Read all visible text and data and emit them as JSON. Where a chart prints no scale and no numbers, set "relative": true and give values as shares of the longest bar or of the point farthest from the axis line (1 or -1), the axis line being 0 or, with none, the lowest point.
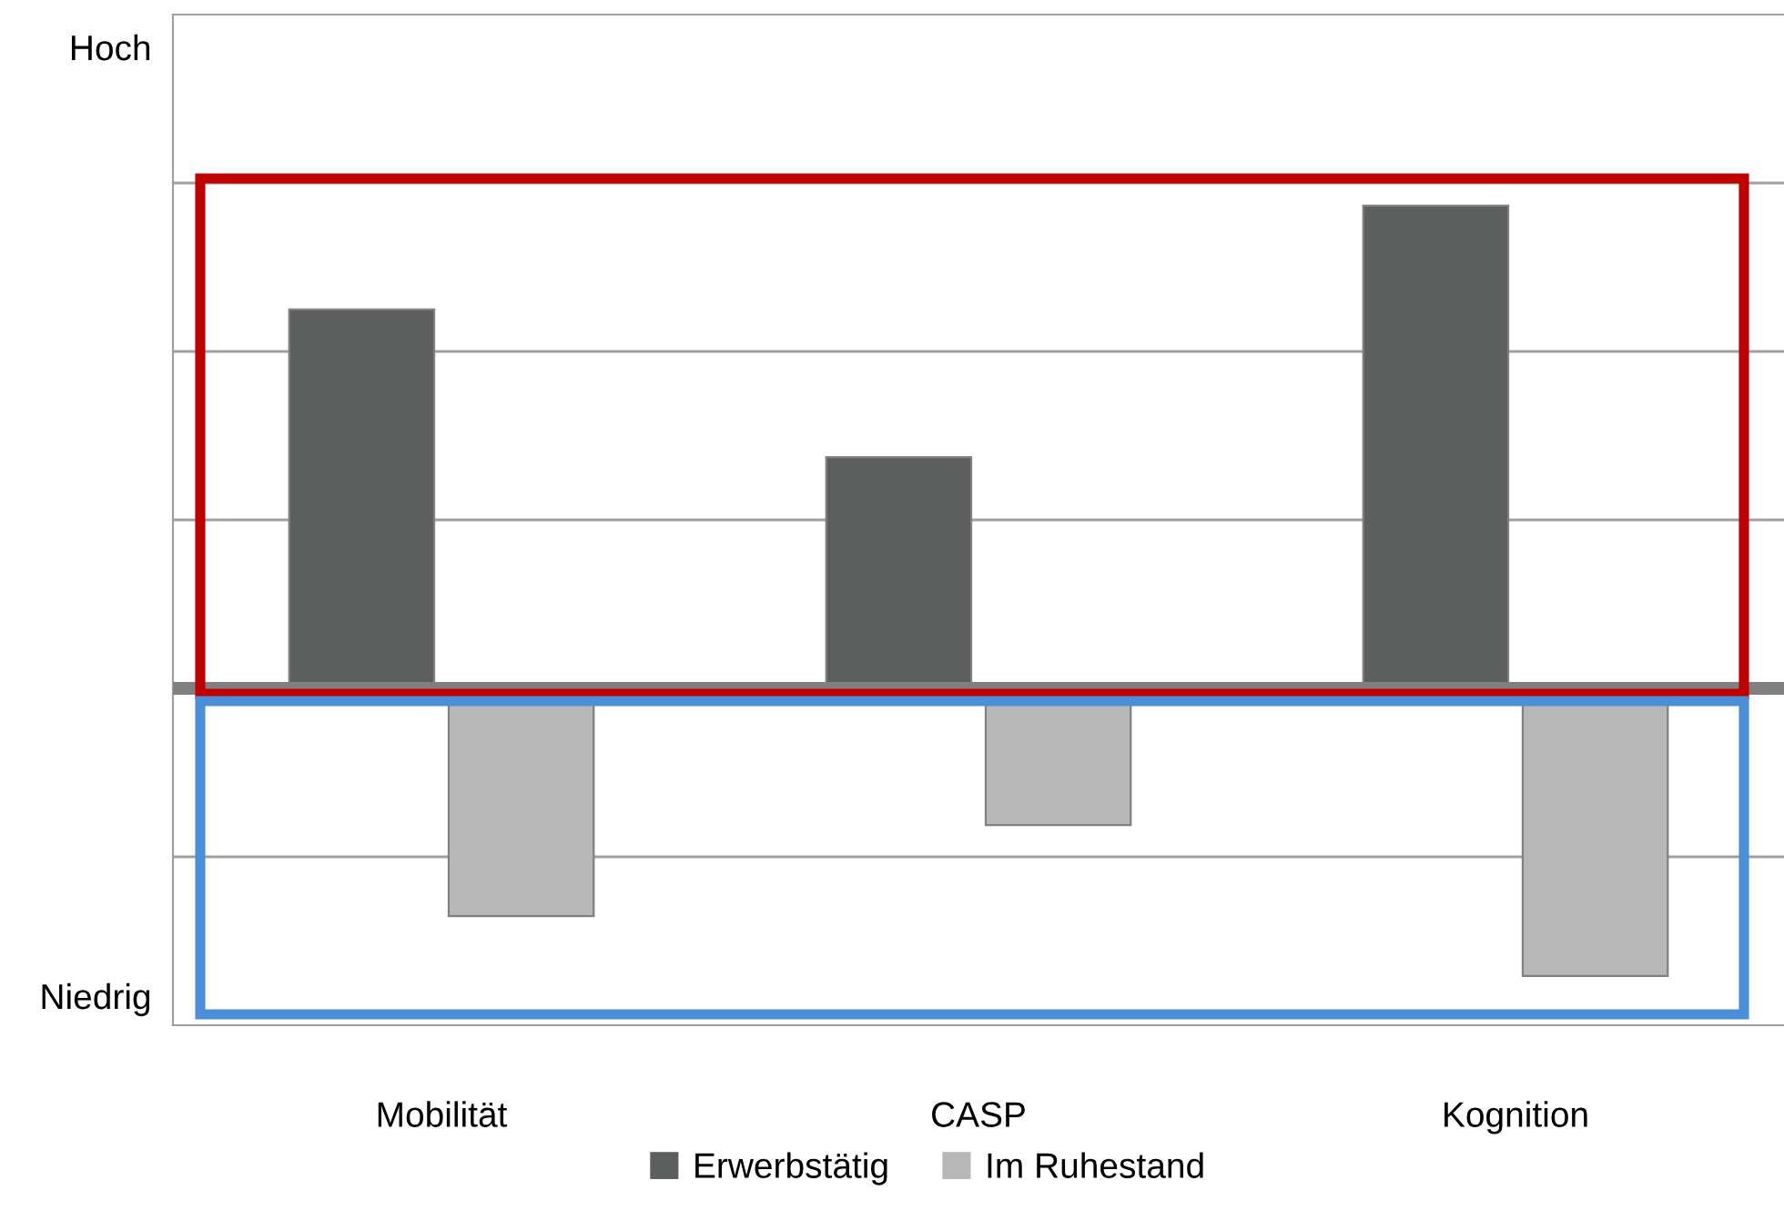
{
  "chart_data": {
    "type": "bar",
    "relative": true,
    "categories": [
      "Mobilität",
      "CASP",
      "Kognition"
    ],
    "series": [
      {
        "name": "Erwerbstätig",
        "color": "#5d5e5e",
        "values": [
          0.785,
          0.479,
          1
        ]
      },
      {
        "name": "Im Ruhestand",
        "color": "#b7b7b7",
        "values": [
          -0.472,
          -0.283,
          -0.596
        ]
      }
    ],
    "annotations": [
      "Hoch",
      "Niedrig"
    ],
    "grid": "y",
    "legend": "bottom"
  }
}
